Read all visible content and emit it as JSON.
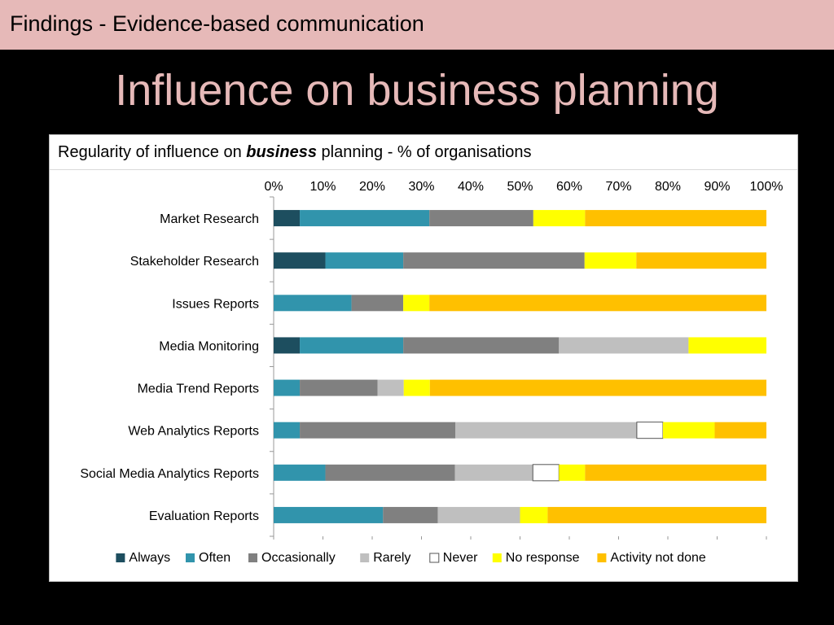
{
  "header": {
    "section_title": "Findings - Evidence-based communication"
  },
  "slide": {
    "title": "Influence on business planning"
  },
  "chart_title": {
    "prefix": "Regularity of influence on ",
    "emphasis": "business",
    "suffix": " planning - % of organisations"
  },
  "chart_data": {
    "type": "bar",
    "orientation": "horizontal",
    "stacked": true,
    "title": "Regularity of influence on business planning - % of organisations",
    "categories": [
      "Market Research",
      "Stakeholder Research",
      "Issues Reports",
      "Media Monitoring",
      "Media Trend Reports",
      "Web Analytics Reports",
      "Social Media Analytics Reports",
      "Evaluation Reports"
    ],
    "xlim": [
      0,
      100
    ],
    "x_ticks": [
      "0%",
      "10%",
      "20%",
      "30%",
      "40%",
      "50%",
      "60%",
      "70%",
      "80%",
      "90%",
      "100%"
    ],
    "x_axis_position": "top",
    "legend_position": "bottom",
    "grid": false,
    "series": [
      {
        "name": "Always",
        "color": "#1d4e5f",
        "values": [
          5.3,
          10.5,
          0,
          5.3,
          0,
          0,
          0,
          0
        ]
      },
      {
        "name": "Often",
        "color": "#3194ac",
        "values": [
          26.3,
          15.8,
          15.8,
          21.0,
          5.3,
          5.3,
          10.5,
          22.2
        ]
      },
      {
        "name": "Occasionally",
        "color": "#808080",
        "values": [
          21.1,
          36.8,
          10.5,
          31.6,
          15.8,
          31.6,
          26.3,
          11.1
        ]
      },
      {
        "name": "Rarely",
        "color": "#bfbfbf",
        "values": [
          0,
          0,
          0,
          26.3,
          5.3,
          36.8,
          15.8,
          16.7
        ]
      },
      {
        "name": "Never",
        "color": "#ffffff",
        "values": [
          0,
          0,
          0,
          0,
          0,
          5.3,
          5.3,
          0
        ]
      },
      {
        "name": "No response",
        "color": "#ffff00",
        "values": [
          10.5,
          10.5,
          5.3,
          15.8,
          5.3,
          10.5,
          5.3,
          5.6
        ]
      },
      {
        "name": "Activity not done",
        "color": "#ffc000",
        "values": [
          36.8,
          26.4,
          68.4,
          0,
          68.3,
          10.5,
          36.8,
          44.4
        ]
      }
    ]
  }
}
